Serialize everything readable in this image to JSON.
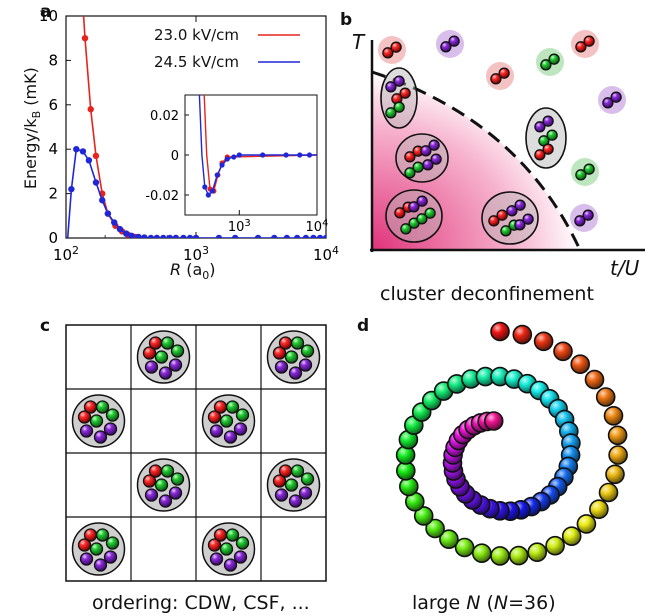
{
  "panels": {
    "a": {
      "label": "a",
      "ylabel": "Energy/k",
      "ylabel_sub": "B",
      "ylabel_unit": "(mK)",
      "xlabel": "R",
      "xlabel_unit": "(a",
      "xlabel_sub": "0",
      "xlabel_close": ")",
      "legend": [
        "23.0 kV/cm",
        "24.5 kV/cm"
      ]
    },
    "b": {
      "label": "b",
      "ylabel": "T",
      "xlabel": "t/U",
      "caption": "cluster deconfinement"
    },
    "c": {
      "label": "c",
      "caption": "ordering: CDW, CSF, ..."
    },
    "d": {
      "label": "d",
      "caption_prefix": "large ",
      "caption_n": "N",
      "caption_mid": " (",
      "caption_n2": "N",
      "caption_val": "=36)"
    }
  },
  "colors": {
    "series_red": "#e8231d",
    "series_blue": "#1f27d8",
    "accent": "#e0337a"
  },
  "chart_data": [
    {
      "type": "line",
      "xscale": "log",
      "xlim": [
        100,
        10000
      ],
      "ylim": [
        0,
        10
      ],
      "xticks": [
        "10^2",
        "10^3",
        "10^4"
      ],
      "yticks": [
        0,
        2,
        4,
        6,
        8,
        10
      ],
      "xlabel": "R (a0)",
      "ylabel": "Energy/kB (mK)",
      "legend_position": "top-right",
      "series": [
        {
          "name": "23.0 kV/cm",
          "color": "#e8231d",
          "x": [
            140,
            155,
            170,
            190,
            210,
            240,
            270,
            300,
            340,
            400,
            500,
            700,
            1000
          ],
          "y": [
            9.0,
            5.8,
            3.7,
            2.0,
            1.1,
            0.55,
            0.3,
            0.15,
            0.05,
            0.02,
            0.0,
            0.0,
            0.0
          ]
        },
        {
          "name": "24.5 kV/cm",
          "color": "#1f27d8",
          "x": [
            100,
            110,
            120,
            135,
            150,
            170,
            190,
            210,
            235,
            260,
            290,
            320,
            360,
            400,
            450,
            500,
            560,
            630,
            700,
            800,
            900,
            1000,
            1500,
            2000,
            3000,
            4000,
            5000,
            6000,
            7000,
            8000,
            9000,
            10000
          ],
          "y": [
            -1.0,
            2.2,
            4.0,
            3.9,
            3.5,
            2.5,
            1.7,
            1.1,
            0.7,
            0.4,
            0.2,
            0.1,
            0.05,
            0.02,
            0.0,
            0.0,
            0.0,
            0.0,
            0.0,
            0.0,
            0.0,
            0.0,
            0.0,
            0.0,
            0.0,
            0.0,
            0.0,
            0.0,
            0.0,
            0.0,
            0.0,
            0.0
          ]
        }
      ]
    },
    {
      "type": "line",
      "xscale": "log",
      "xlim": [
        200,
        10000
      ],
      "ylim": [
        -0.03,
        0.03
      ],
      "xticks": [
        "10^3",
        "10^4"
      ],
      "yticks": [
        0.02,
        0,
        -0.02
      ],
      "series": [
        {
          "name": "23.0 kV/cm",
          "color": "#e8231d",
          "x": [
            380,
            420,
            470,
            530,
            600,
            700
          ],
          "y": [
            0.0,
            -0.017,
            -0.018,
            -0.01,
            -0.004,
            -0.001
          ]
        },
        {
          "name": "24.5 kV/cm",
          "color": "#1f27d8",
          "x": [
            330,
            360,
            400,
            450,
            520,
            600,
            700,
            850,
            1000,
            2000,
            4000,
            6000,
            8000
          ],
          "y": [
            0.0,
            -0.016,
            -0.02,
            -0.018,
            -0.01,
            -0.005,
            -0.002,
            -0.001,
            0.0,
            0.0,
            0.0,
            0.0,
            0.0
          ]
        }
      ]
    }
  ]
}
